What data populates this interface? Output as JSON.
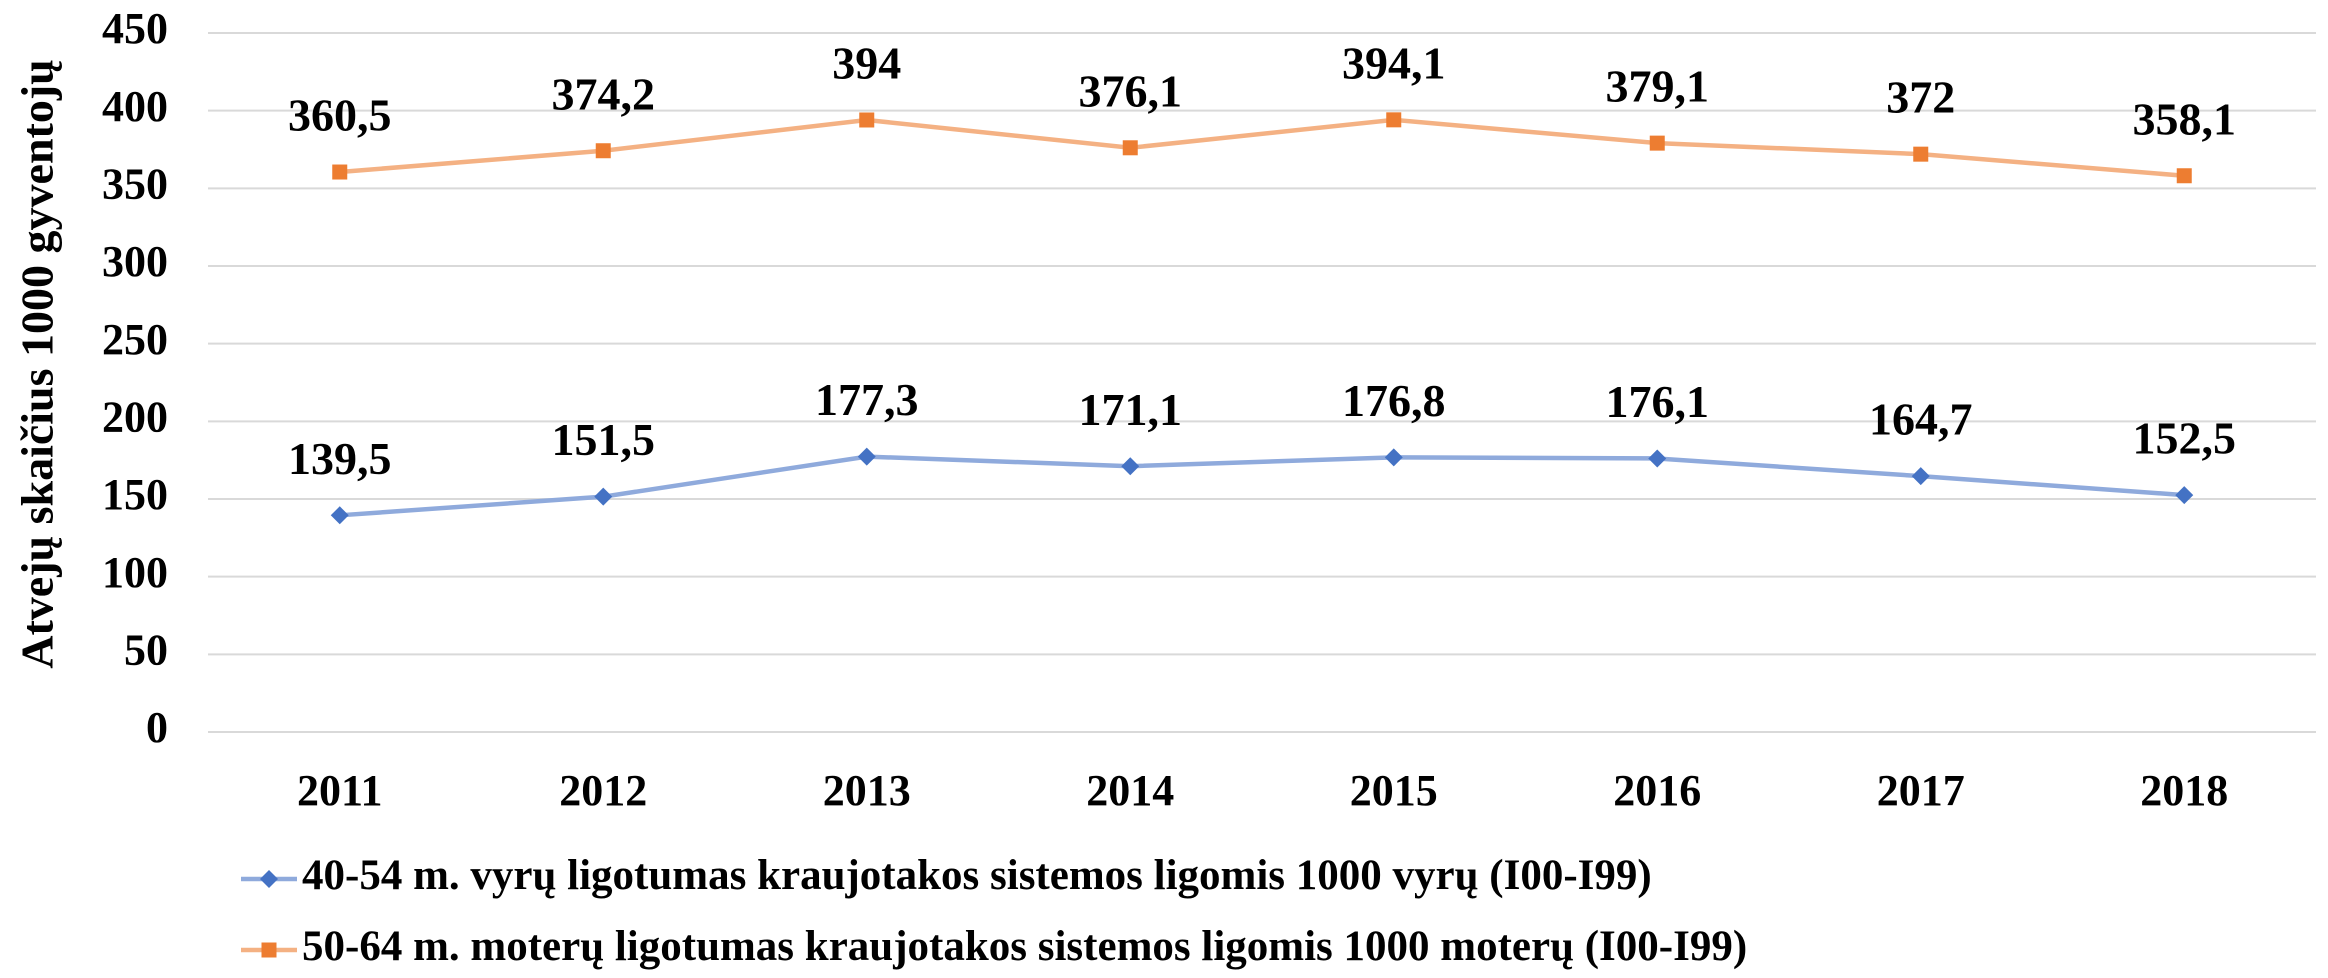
{
  "chart_data": {
    "type": "line",
    "y_label": "Atvejų skaičius 1000 gyventojų",
    "categories": [
      "2011",
      "2012",
      "2013",
      "2014",
      "2015",
      "2016",
      "2017",
      "2018"
    ],
    "series": [
      {
        "name": "40-54 m. vyrų ligotumas kraujotakos sistemos ligomis 1000 vyrų (I00-I99)",
        "color": "#4472c4",
        "line_color": "#8faadc",
        "marker": "diamond",
        "values": [
          139.5,
          151.5,
          177.3,
          171.1,
          176.8,
          176.1,
          164.7,
          152.5
        ],
        "value_labels": [
          "139,5",
          "151,5",
          "177,3",
          "171,1",
          "176,8",
          "176,1",
          "164,7",
          "152,5"
        ]
      },
      {
        "name": "50-64 m. moterų ligotumas kraujotakos sistemos ligomis 1000 moterų (I00-I99)",
        "color": "#ed7d31",
        "line_color": "#f4b183",
        "marker": "square",
        "values": [
          360.5,
          374.2,
          394,
          376.1,
          394.1,
          379.1,
          372,
          358.1
        ],
        "value_labels": [
          "360,5",
          "374,2",
          "394",
          "376,1",
          "394,1",
          "379,1",
          "372",
          "358,1"
        ]
      }
    ],
    "ylim": [
      0,
      450
    ],
    "yticks": [
      0,
      50,
      100,
      150,
      200,
      250,
      300,
      350,
      400,
      450
    ],
    "grid": true,
    "legend": "bottom"
  }
}
